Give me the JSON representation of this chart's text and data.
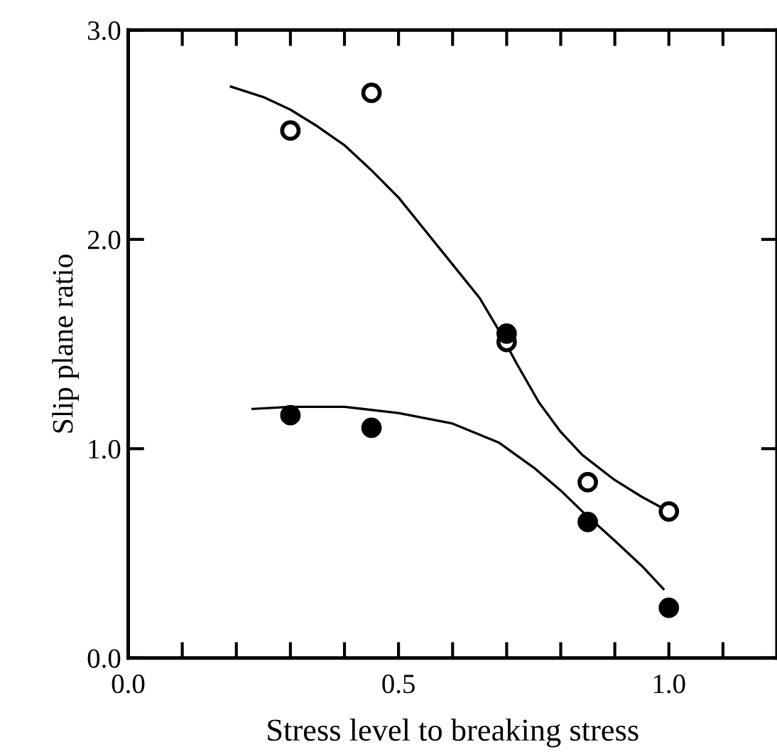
{
  "chart_data": {
    "type": "scatter",
    "xlabel": "Stress level to breaking stress",
    "ylabel": "Slip plane ratio",
    "xlim": [
      0,
      1.2
    ],
    "ylim": [
      0,
      3.0
    ],
    "xticks": [
      {
        "value": 0.0,
        "label": "0.0"
      },
      {
        "value": 0.1,
        "label": null
      },
      {
        "value": 0.2,
        "label": null
      },
      {
        "value": 0.3,
        "label": null
      },
      {
        "value": 0.4,
        "label": null
      },
      0.5,
      {
        "value": 0.6,
        "label": null
      },
      {
        "value": 0.7,
        "label": null
      },
      {
        "value": 0.8,
        "label": null
      },
      {
        "value": 0.9,
        "label": null
      },
      {
        "value": 1.0,
        "label": "1.0"
      },
      {
        "value": 1.1,
        "label": null
      }
    ],
    "yticks": [
      {
        "value": 0.0,
        "label": "0.0"
      },
      {
        "value": 1.0,
        "label": "1.0"
      },
      {
        "value": 2.0,
        "label": "2.0"
      },
      {
        "value": 3.0,
        "label": "3.0"
      }
    ],
    "grid": false,
    "marker": "circle",
    "series": [
      {
        "color": "#ffffff",
        "x": [
          0.3,
          0.45,
          0.7,
          0.85,
          1.0
        ],
        "values": [
          2.52,
          2.7,
          1.51,
          0.84,
          0.7
        ]
      },
      {
        "color": "#000000",
        "x": [
          0.3,
          0.45,
          0.7,
          0.85,
          1.0
        ],
        "values": [
          1.16,
          1.1,
          1.55,
          0.65,
          0.24
        ]
      },
      {
        "type": "line",
        "marker": "none",
        "line_style": "solid",
        "color": "#000000",
        "x": [
          0.19,
          0.25,
          0.3,
          0.35,
          0.4,
          0.45,
          0.5,
          0.55,
          0.6,
          0.65,
          0.68,
          0.72,
          0.76,
          0.8,
          0.84,
          0.9,
          0.95,
          1.0
        ],
        "values": [
          2.73,
          2.68,
          2.62,
          2.54,
          2.45,
          2.33,
          2.2,
          2.04,
          1.88,
          1.72,
          1.59,
          1.4,
          1.22,
          1.08,
          0.97,
          0.85,
          0.77,
          0.7
        ]
      },
      {
        "type": "line",
        "marker": "none",
        "line_style": "solid",
        "color": "#000000",
        "x": [
          0.23,
          0.3,
          0.4,
          0.5,
          0.6,
          0.685,
          0.75,
          0.8,
          0.84,
          0.9,
          0.95,
          0.99
        ],
        "values": [
          1.19,
          1.2,
          1.2,
          1.17,
          1.12,
          1.03,
          0.91,
          0.8,
          0.7,
          0.56,
          0.44,
          0.33
        ]
      }
    ]
  }
}
